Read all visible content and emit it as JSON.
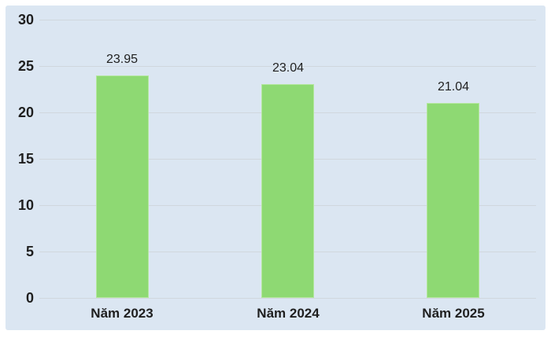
{
  "chart_data": {
    "type": "bar",
    "title": "",
    "categories": [
      "Năm 2023",
      "Năm 2024",
      "Năm 2025"
    ],
    "values": [
      23.95,
      23.04,
      21.04
    ],
    "data_labels": [
      "23.95",
      "23.04",
      "21.04"
    ],
    "y_ticks": [
      0,
      5,
      10,
      15,
      20,
      25,
      30
    ],
    "ylim": [
      0,
      30
    ],
    "xlabel": "",
    "ylabel": "",
    "grid": true,
    "legend": "none",
    "colors": {
      "bar_fill": "#8ed973",
      "bar_border": "#b4e79e",
      "plot_background": "#dbe6f2",
      "gridline": "#d0d7dd",
      "text": "#1f1f1f",
      "page_background": "#ffffff"
    }
  }
}
